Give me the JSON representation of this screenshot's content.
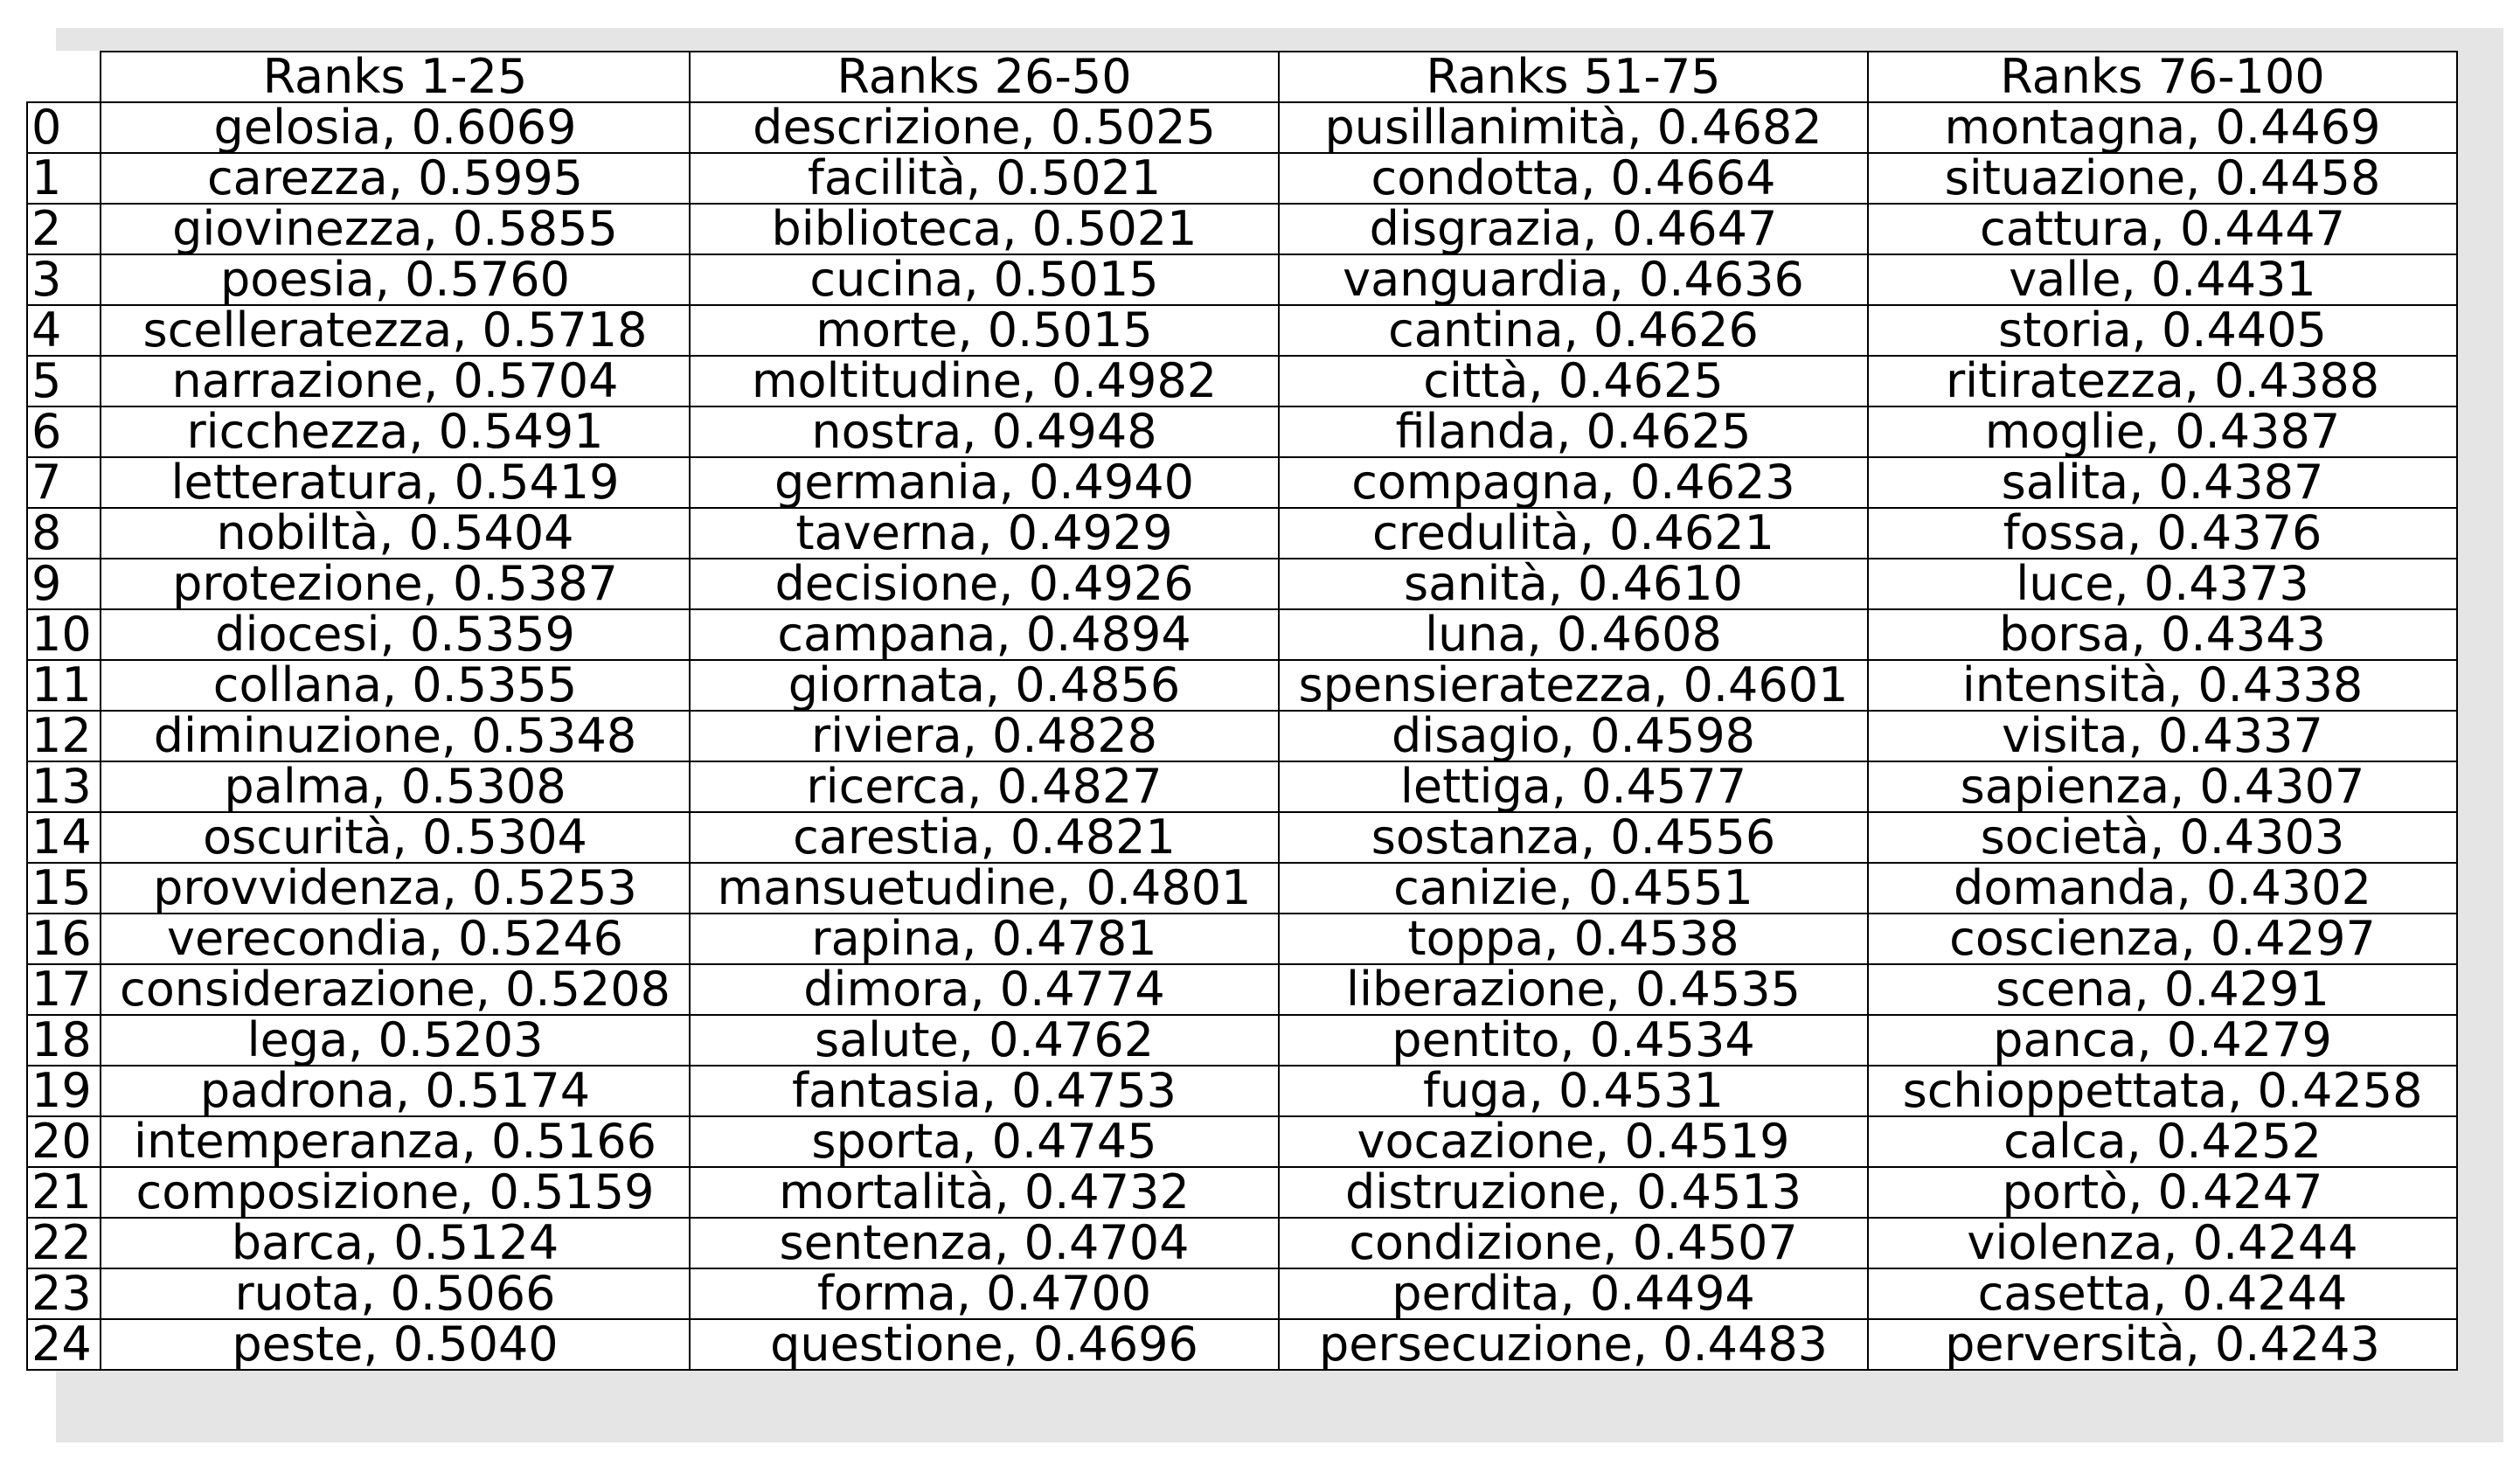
{
  "chart_data": {
    "type": "table",
    "columns": [
      "Ranks 1-25",
      "Ranks 26-50",
      "Ranks 51-75",
      "Ranks 76-100"
    ],
    "row_labels": [
      "0",
      "1",
      "2",
      "3",
      "4",
      "5",
      "6",
      "7",
      "8",
      "9",
      "10",
      "11",
      "12",
      "13",
      "14",
      "15",
      "16",
      "17",
      "18",
      "19",
      "20",
      "21",
      "22",
      "23",
      "24"
    ],
    "rows": [
      [
        "gelosia, 0.6069",
        "descrizione, 0.5025",
        "pusillanimità, 0.4682",
        "montagna, 0.4469"
      ],
      [
        "carezza, 0.5995",
        "facilità, 0.5021",
        "condotta, 0.4664",
        "situazione, 0.4458"
      ],
      [
        "giovinezza, 0.5855",
        "biblioteca, 0.5021",
        "disgrazia, 0.4647",
        "cattura, 0.4447"
      ],
      [
        "poesia, 0.5760",
        "cucina, 0.5015",
        "vanguardia, 0.4636",
        "valle, 0.4431"
      ],
      [
        "scelleratezza, 0.5718",
        "morte, 0.5015",
        "cantina, 0.4626",
        "storia, 0.4405"
      ],
      [
        "narrazione, 0.5704",
        "moltitudine, 0.4982",
        "città, 0.4625",
        "ritiratezza, 0.4388"
      ],
      [
        "ricchezza, 0.5491",
        "nostra, 0.4948",
        "filanda, 0.4625",
        "moglie, 0.4387"
      ],
      [
        "letteratura, 0.5419",
        "germania, 0.4940",
        "compagna, 0.4623",
        "salita, 0.4387"
      ],
      [
        "nobiltà, 0.5404",
        "taverna, 0.4929",
        "credulità, 0.4621",
        "fossa, 0.4376"
      ],
      [
        "protezione, 0.5387",
        "decisione, 0.4926",
        "sanità, 0.4610",
        "luce, 0.4373"
      ],
      [
        "diocesi, 0.5359",
        "campana, 0.4894",
        "luna, 0.4608",
        "borsa, 0.4343"
      ],
      [
        "collana, 0.5355",
        "giornata, 0.4856",
        "spensieratezza, 0.4601",
        "intensità, 0.4338"
      ],
      [
        "diminuzione, 0.5348",
        "riviera, 0.4828",
        "disagio, 0.4598",
        "visita, 0.4337"
      ],
      [
        "palma, 0.5308",
        "ricerca, 0.4827",
        "lettiga, 0.4577",
        "sapienza, 0.4307"
      ],
      [
        "oscurità, 0.5304",
        "carestia, 0.4821",
        "sostanza, 0.4556",
        "società, 0.4303"
      ],
      [
        "provvidenza, 0.5253",
        "mansuetudine, 0.4801",
        "canizie, 0.4551",
        "domanda, 0.4302"
      ],
      [
        "verecondia, 0.5246",
        "rapina, 0.4781",
        "toppa, 0.4538",
        "coscienza, 0.4297"
      ],
      [
        "considerazione, 0.5208",
        "dimora, 0.4774",
        "liberazione, 0.4535",
        "scena, 0.4291"
      ],
      [
        "lega, 0.5203",
        "salute, 0.4762",
        "pentito, 0.4534",
        "panca, 0.4279"
      ],
      [
        "padrona, 0.5174",
        "fantasia, 0.4753",
        "fuga, 0.4531",
        "schioppettata, 0.4258"
      ],
      [
        "intemperanza, 0.5166",
        "sporta, 0.4745",
        "vocazione, 0.4519",
        "calca, 0.4252"
      ],
      [
        "composizione, 0.5159",
        "mortalità, 0.4732",
        "distruzione, 0.4513",
        "portò, 0.4247"
      ],
      [
        "barca, 0.5124",
        "sentenza, 0.4704",
        "condizione, 0.4507",
        "violenza, 0.4244"
      ],
      [
        "ruota, 0.5066",
        "forma, 0.4700",
        "perdita, 0.4494",
        "casetta, 0.4244"
      ],
      [
        "peste, 0.5040",
        "questione, 0.4696",
        "persecuzione, 0.4483",
        "perversità, 0.4243"
      ]
    ]
  },
  "colors": {
    "frame_background": "#e5e5e5",
    "cell_background": "#ffffff",
    "grid_lines": "#000000",
    "text": "#000000"
  }
}
